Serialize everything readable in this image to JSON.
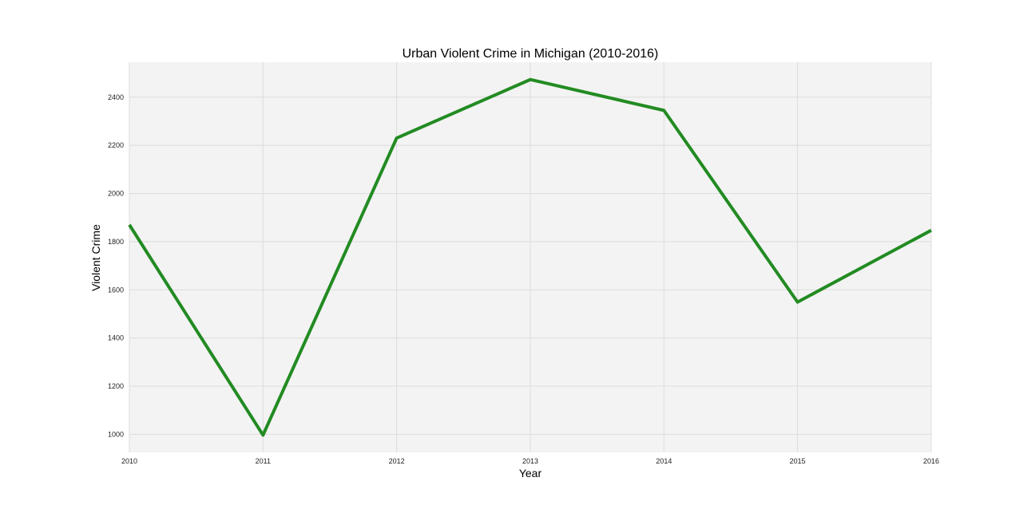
{
  "chart_data": {
    "type": "line",
    "title": "Urban Violent Crime in Michigan (2010-2016)",
    "xlabel": "Year",
    "ylabel": "Violent Crime",
    "x": [
      2010,
      2011,
      2012,
      2013,
      2014,
      2015,
      2016
    ],
    "x_tick_labels": [
      "2010",
      "2011",
      "2012",
      "2013",
      "2014",
      "2015",
      "2016"
    ],
    "y_ticks": [
      1000,
      1200,
      1400,
      1600,
      1800,
      2000,
      2200,
      2400
    ],
    "y_tick_labels": [
      "1000",
      "1200",
      "1400",
      "1600",
      "1800",
      "2000",
      "2200",
      "2400"
    ],
    "xlim": [
      2010,
      2016
    ],
    "ylim": [
      925,
      2545
    ],
    "grid": true,
    "series": [
      {
        "values": [
          1870,
          997,
          2230,
          2473,
          2345,
          1549,
          1847
        ],
        "color": "#228b22"
      }
    ],
    "colors": {
      "plot_background": "#f3f3f3",
      "grid": "#dcdcdc",
      "line": "#228b22"
    }
  }
}
